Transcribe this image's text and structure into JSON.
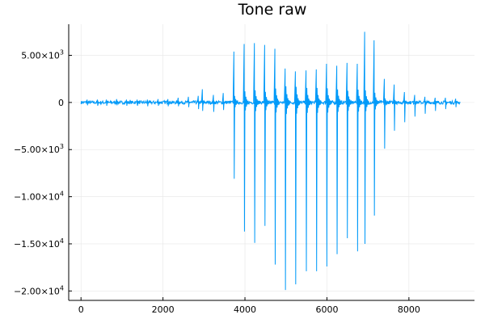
{
  "chart_data": {
    "type": "line",
    "title": "Tone raw",
    "xlabel": "",
    "ylabel": "",
    "xlim": [
      -300,
      9600
    ],
    "ylim": [
      -21000,
      8300
    ],
    "grid": true,
    "legend": "none",
    "x_ticks": [
      {
        "value": 0,
        "label": "0"
      },
      {
        "value": 2000,
        "label": "2000"
      },
      {
        "value": 4000,
        "label": "4000"
      },
      {
        "value": 6000,
        "label": "6000"
      },
      {
        "value": 8000,
        "label": "8000"
      }
    ],
    "y_ticks": [
      {
        "value": 5000,
        "mant": "5.00×10",
        "exp": "3",
        "label": "5.00×10^3"
      },
      {
        "value": 0,
        "mant": "0",
        "exp": "",
        "label": "0"
      },
      {
        "value": -5000,
        "mant": "−5.00×10",
        "exp": "3",
        "label": "-5.00×10^3"
      },
      {
        "value": -10000,
        "mant": "−1.00×10",
        "exp": "4",
        "label": "-1.00×10^4"
      },
      {
        "value": -15000,
        "mant": "−1.50×10",
        "exp": "4",
        "label": "-1.50×10^4"
      },
      {
        "value": -20000,
        "mant": "−2.00×10",
        "exp": "4",
        "label": "-2.00×10^4"
      }
    ],
    "series": [
      {
        "color": "#009af9",
        "n_points": 9240,
        "baseline_noise": 180,
        "pulses": [
          {
            "x": 150,
            "max": 300,
            "min": -300
          },
          {
            "x": 400,
            "max": 300,
            "min": -350
          },
          {
            "x": 620,
            "max": 300,
            "min": -350
          },
          {
            "x": 870,
            "max": 350,
            "min": -300
          },
          {
            "x": 1110,
            "max": 300,
            "min": -350
          },
          {
            "x": 1370,
            "max": 300,
            "min": -350
          },
          {
            "x": 1620,
            "max": 300,
            "min": -400
          },
          {
            "x": 1880,
            "max": 350,
            "min": -350
          },
          {
            "x": 2120,
            "max": 350,
            "min": -400
          },
          {
            "x": 2370,
            "max": 500,
            "min": -400
          },
          {
            "x": 2620,
            "max": 600,
            "min": -500
          },
          {
            "x": 2860,
            "max": 700,
            "min": -700
          },
          {
            "x": 2960,
            "max": 1400,
            "min": -900
          },
          {
            "x": 3230,
            "max": 800,
            "min": -1000
          },
          {
            "x": 3470,
            "max": 1000,
            "min": -800
          },
          {
            "x": 3730,
            "max": 5400,
            "min": -8100
          },
          {
            "x": 3980,
            "max": 6200,
            "min": -13700
          },
          {
            "x": 4230,
            "max": 6300,
            "min": -14900
          },
          {
            "x": 4480,
            "max": 6100,
            "min": -13100
          },
          {
            "x": 4730,
            "max": 5700,
            "min": -17200
          },
          {
            "x": 4980,
            "max": 3600,
            "min": -19900
          },
          {
            "x": 5230,
            "max": 3300,
            "min": -19300
          },
          {
            "x": 5490,
            "max": 3400,
            "min": -17900
          },
          {
            "x": 5740,
            "max": 3500,
            "min": -17900
          },
          {
            "x": 5990,
            "max": 4100,
            "min": -17400
          },
          {
            "x": 6240,
            "max": 3900,
            "min": -16100
          },
          {
            "x": 6490,
            "max": 4200,
            "min": -14400
          },
          {
            "x": 6740,
            "max": 4100,
            "min": -15800
          },
          {
            "x": 6920,
            "max": 7500,
            "min": -15000
          },
          {
            "x": 7150,
            "max": 6600,
            "min": -12000
          },
          {
            "x": 7400,
            "max": 2500,
            "min": -4900
          },
          {
            "x": 7640,
            "max": 1900,
            "min": -3000
          },
          {
            "x": 7890,
            "max": 1100,
            "min": -2100
          },
          {
            "x": 8140,
            "max": 800,
            "min": -1500
          },
          {
            "x": 8390,
            "max": 600,
            "min": -1200
          },
          {
            "x": 8640,
            "max": 500,
            "min": -900
          },
          {
            "x": 8890,
            "max": 500,
            "min": -700
          },
          {
            "x": 9140,
            "max": 400,
            "min": -500
          }
        ]
      }
    ]
  }
}
